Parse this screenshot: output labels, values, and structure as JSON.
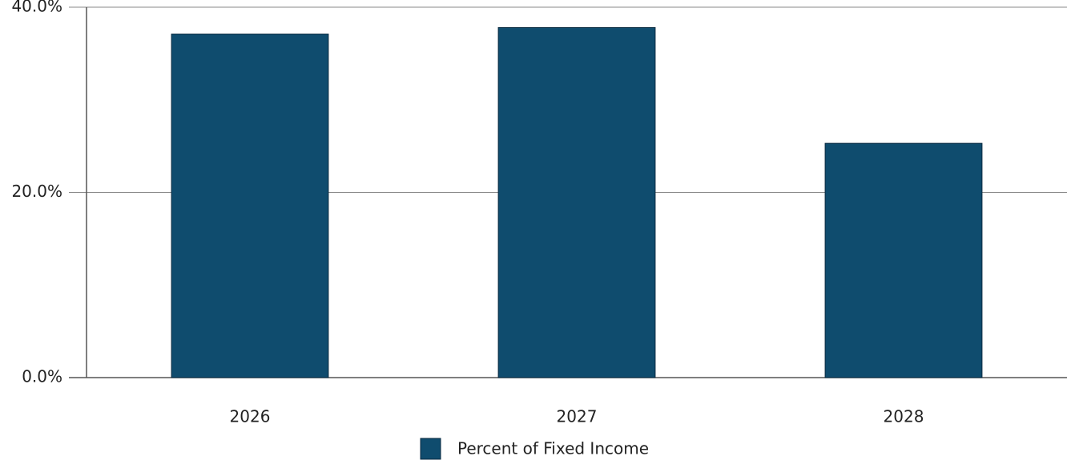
{
  "chart_data": {
    "type": "bar",
    "categories": [
      "2026",
      "2027",
      "2028"
    ],
    "series": [
      {
        "name": "Percent of Fixed Income",
        "color": "#0f4c6e",
        "values": [
          37.1,
          37.8,
          25.3
        ]
      }
    ],
    "ylim": [
      0,
      40
    ],
    "yticks": [
      {
        "value": 0,
        "label": "0.0%"
      },
      {
        "value": 20,
        "label": "20.0%"
      },
      {
        "value": 40,
        "label": "40.0%"
      }
    ],
    "grid": true,
    "legend": "bottom"
  }
}
